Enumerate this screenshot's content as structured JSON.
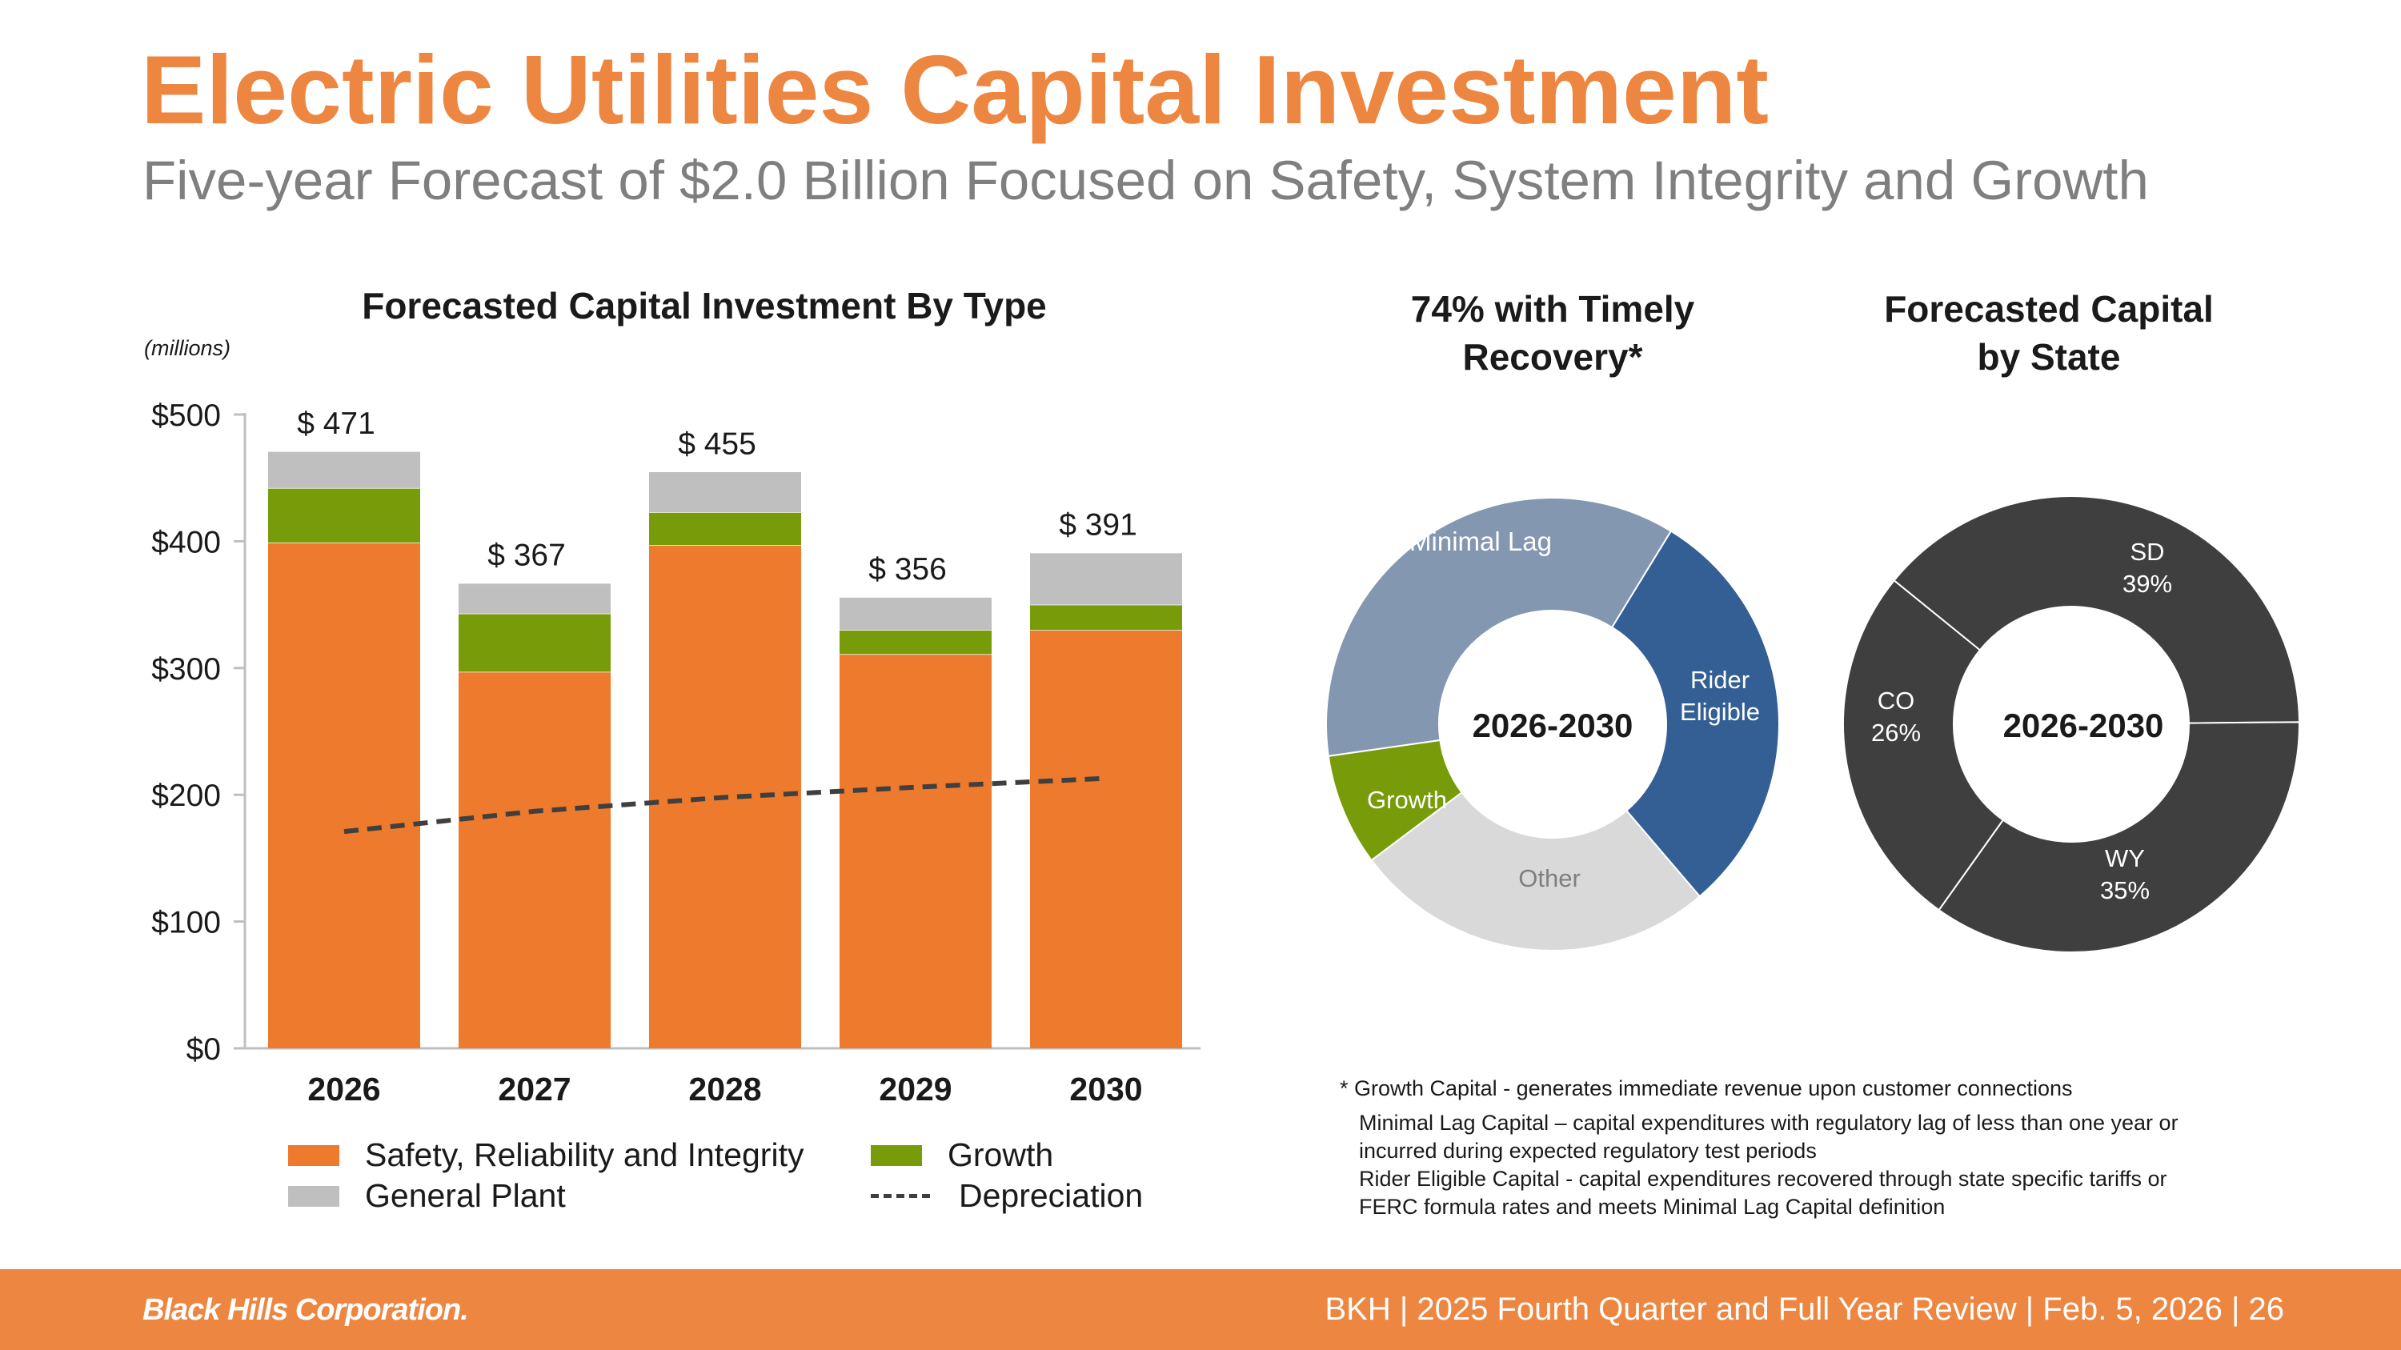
{
  "header": {
    "title": "Electric Utilities Capital Investment",
    "subtitle": "Five-year Forecast of $2.0 Billion Focused on Safety, System Integrity and Growth"
  },
  "colors": {
    "accent": "#ED8640",
    "safety": "#ED7A2D",
    "growth": "#789B0A",
    "general_plant": "#BFBFBF",
    "depreciation": "#3F3F3F",
    "minimal_lag": "#8497B0",
    "rider_eligible": "#335F94",
    "other": "#D9D9D9",
    "state_ring": "#3F3F3F"
  },
  "chart_data": [
    {
      "type": "bar",
      "stacked": true,
      "title": "Forecasted Capital Investment By Type",
      "units_note": "(millions)",
      "categories": [
        "2026",
        "2027",
        "2028",
        "2029",
        "2030"
      ],
      "ylim": [
        0,
        500
      ],
      "y_ticks": [
        0,
        100,
        200,
        300,
        400,
        500
      ],
      "y_tick_labels": [
        "$0",
        "$100",
        "$200",
        "$300",
        "$400",
        "$500"
      ],
      "series": [
        {
          "name": "Safety, Reliability and Integrity",
          "values": [
            399,
            297,
            397,
            311,
            330
          ]
        },
        {
          "name": "Growth",
          "values": [
            43,
            46,
            26,
            19,
            20
          ]
        },
        {
          "name": "General Plant",
          "values": [
            29,
            24,
            32,
            26,
            41
          ]
        }
      ],
      "totals": [
        471,
        367,
        455,
        356,
        391
      ],
      "total_labels": [
        "$ 471",
        "$ 367",
        "$ 455",
        "$ 356",
        "$ 391"
      ],
      "line_series": {
        "name": "Depreciation",
        "style": "dashed",
        "values": [
          171,
          187,
          198,
          206,
          213
        ]
      },
      "legend": {
        "safety": "Safety, Reliability and Integrity",
        "growth": "Growth",
        "general_plant": "General Plant",
        "depreciation": "Depreciation"
      }
    },
    {
      "type": "pie",
      "donut": true,
      "title_line1": "74% with Timely",
      "title_line2": "Recovery*",
      "center_label": "2026-2030",
      "slices": [
        {
          "label": "Minimal Lag",
          "value": 36
        },
        {
          "label": "Rider Eligible",
          "label_line1": "Rider",
          "label_line2": "Eligible",
          "value": 30
        },
        {
          "label": "Other",
          "value": 26
        },
        {
          "label": "Growth",
          "value": 8
        }
      ]
    },
    {
      "type": "pie",
      "donut": true,
      "title_line1": "Forecasted Capital",
      "title_line2": "by State",
      "center_label": "2026-2030",
      "slices": [
        {
          "label": "SD",
          "pct_label": "39%",
          "value": 39
        },
        {
          "label": "WY",
          "pct_label": "35%",
          "value": 35
        },
        {
          "label": "CO",
          "pct_label": "26%",
          "value": 26
        }
      ]
    }
  ],
  "notes": [
    "* Growth Capital - generates immediate revenue upon customer connections",
    "Minimal Lag Capital – capital expenditures with regulatory lag of less than one year or",
    "incurred during expected regulatory test periods",
    "Rider Eligible Capital - capital expenditures recovered through state specific tariffs or",
    "FERC formula rates and meets Minimal Lag Capital definition"
  ],
  "footer": {
    "logo": "Black Hills Corporation.",
    "text": "BKH  |  2025 Fourth Quarter and Full Year Review  |  Feb. 5, 2026  |  26"
  }
}
